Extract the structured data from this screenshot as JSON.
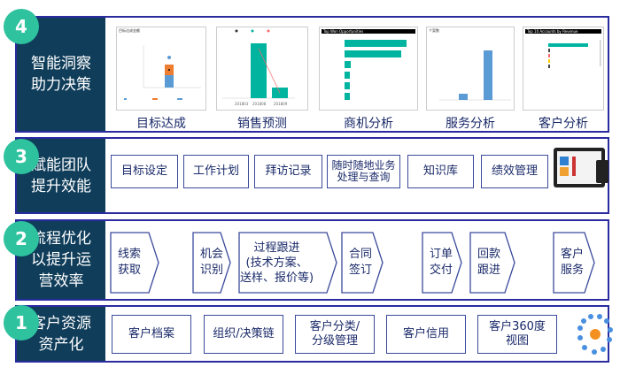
{
  "colors": {
    "panel": "#0f3d5a",
    "badge": "#2ec29e",
    "border": "#2b2ba0",
    "teal": "#00b4a0",
    "blue": "#5b9bd5",
    "orange": "#ed7d31"
  },
  "layers": [
    {
      "number": "4",
      "title_line1": "智能洞察",
      "title_line2": "助力决策",
      "charts": [
        {
          "label": "目标达成",
          "title": "目标达成金额",
          "y_ticks": [
            "10,000,000",
            "8,000,000",
            "6,000,000",
            "4,000,000",
            "2,000,000",
            "0"
          ],
          "x_label": "SaleDemo"
        },
        {
          "label": "销售预测",
          "legend": [
            "Hot",
            "Warm",
            "Est. Revenue (Base)"
          ],
          "x_ticks": [
            "201803",
            "201808",
            "201809"
          ]
        },
        {
          "label": "商机分析",
          "title": "Top Won Opportunities"
        },
        {
          "label": "服务分析",
          "title": "个案数",
          "y_ticks": [
            "10",
            "8",
            "6",
            "4",
            "2",
            "0"
          ],
          "values": [
            1,
            8
          ]
        },
        {
          "label": "客户分析",
          "title": "Top 10 Accounts by Revenue"
        }
      ]
    },
    {
      "number": "3",
      "title_line1": "赋能团队",
      "title_line2": "提升效能",
      "items": [
        "目标设定",
        "工作计划",
        "拜访记录",
        "随时随地业务处理与查询",
        "知识库",
        "绩效管理"
      ],
      "image": "tablet-app"
    },
    {
      "number": "2",
      "title_line1": "流程优化",
      "title_line2": "以提升运",
      "title_line3": "营效率",
      "steps": [
        [
          "线索",
          "获取"
        ],
        [
          "机会",
          "识别"
        ],
        [
          "过程跟进",
          "(技术方案、",
          "送样、报价等)"
        ],
        [
          "合同",
          "签订"
        ],
        [
          "订单",
          "交付"
        ],
        [
          "回款",
          "跟进"
        ],
        [
          "客户",
          "服务"
        ]
      ]
    },
    {
      "number": "1",
      "title_line1": "客户资源",
      "title_line2": "资产化",
      "items": [
        [
          "客户档案"
        ],
        [
          "组织/决策链"
        ],
        [
          "客户分类/",
          "分级管理"
        ],
        [
          "客户信用"
        ],
        [
          "客户360度",
          "视图"
        ]
      ],
      "icon": "network-hub"
    }
  ]
}
